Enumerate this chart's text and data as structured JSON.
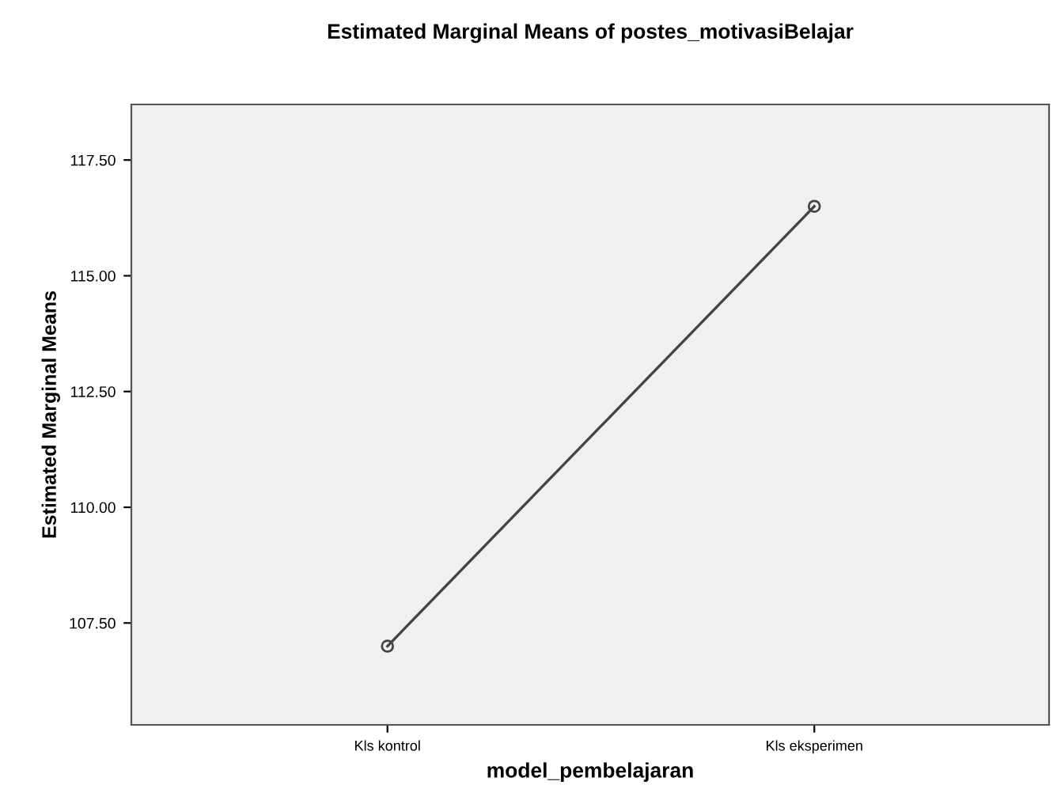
{
  "chart_data": {
    "type": "line",
    "title": "Estimated Marginal Means of postes_motivasiBelajar",
    "xlabel": "model_pembelajaran",
    "ylabel": "Estimated Marginal Means",
    "categories": [
      "Kls kontrol",
      "Kls eksperimen"
    ],
    "series": [
      {
        "color": "#444444",
        "values": [
          107.0,
          116.5
        ]
      }
    ],
    "ylim": [
      105.3,
      118.7
    ],
    "yticks": [
      {
        "value": 107.5,
        "label": "107.50"
      },
      {
        "value": 110,
        "label": "110.00"
      },
      {
        "value": 112.5,
        "label": "112.50"
      },
      {
        "value": 115,
        "label": "115.00"
      },
      {
        "value": 117.5,
        "label": "117.50"
      }
    ],
    "grid": false,
    "legend": false,
    "marker": "circle",
    "line_style": "solid"
  }
}
